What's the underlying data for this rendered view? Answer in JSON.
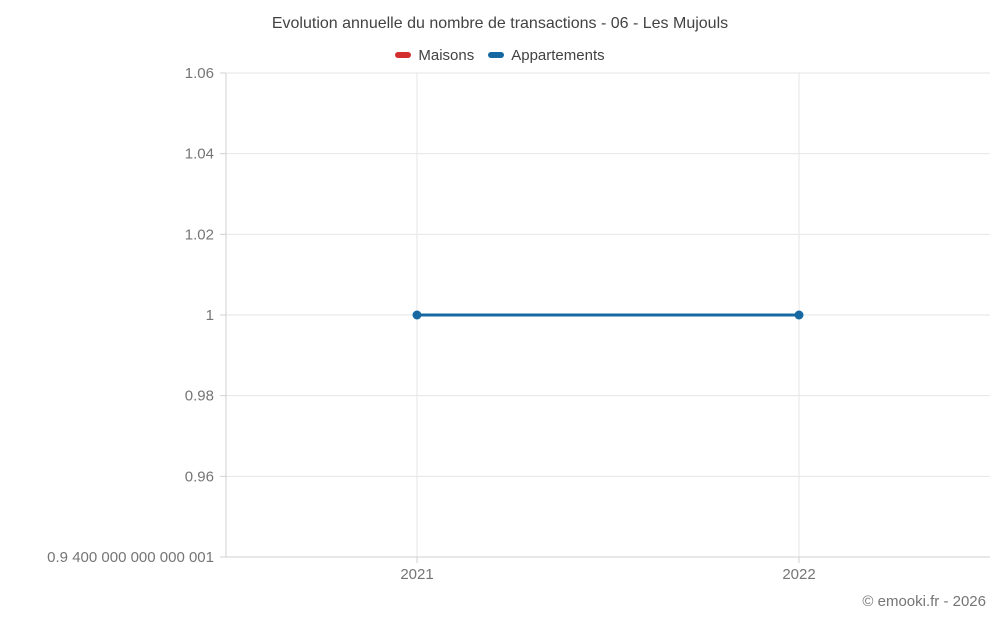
{
  "chart": {
    "title": "Evolution annuelle du nombre de transactions - 06 - Les Mujouls",
    "copyright": "© emooki.fr - 2026",
    "legend": [
      {
        "label": "Maisons",
        "color": "#d32f2f"
      },
      {
        "label": "Appartements",
        "color": "#1668a2"
      }
    ]
  },
  "chart_data": {
    "type": "line",
    "title": "Evolution annuelle du nombre de transactions - 06 - Les Mujouls",
    "categories": [
      "2021",
      "2022"
    ],
    "series": [
      {
        "name": "Maisons",
        "color": "#d32f2f",
        "values": [
          null,
          null
        ]
      },
      {
        "name": "Appartements",
        "color": "#1668a2",
        "values": [
          1,
          1
        ]
      }
    ],
    "xlabel": "",
    "ylabel": "",
    "ylim": [
      0.9400000000000001,
      1.06
    ],
    "yticks": [
      {
        "value": 1.06,
        "label": "1.06"
      },
      {
        "value": 1.04,
        "label": "1.04"
      },
      {
        "value": 1.02,
        "label": "1.02"
      },
      {
        "value": 1.0,
        "label": "1"
      },
      {
        "value": 0.98,
        "label": "0.98"
      },
      {
        "value": 0.96,
        "label": "0.96"
      },
      {
        "value": 0.9400000000000001,
        "label": "0.9 400 000 000 000 001"
      }
    ],
    "legend_position": "top",
    "grid": true,
    "colors": {
      "grid_line": "#e6e6e6",
      "axis_line": "#d0d0d0",
      "tick_label": "#757575"
    }
  }
}
